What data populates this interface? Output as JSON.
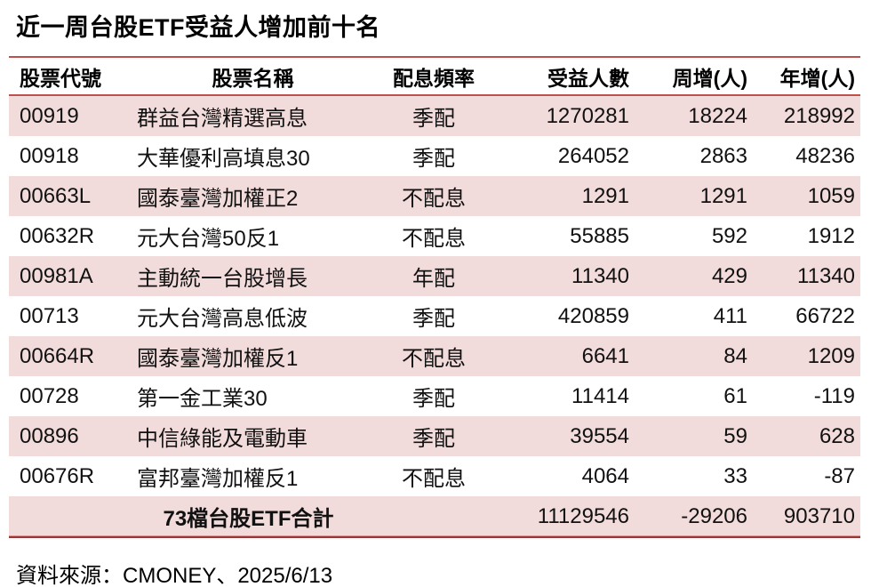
{
  "title": "近一周台股ETF受益人增加前十名",
  "chart_data": {
    "type": "table",
    "title": "近一周台股ETF受益人增加前十名",
    "columns": [
      "股票代號",
      "股票名稱",
      "配息頻率",
      "受益人數",
      "周增(人)",
      "年增(人)"
    ],
    "rows": [
      {
        "code": "00919",
        "name": "群益台灣精選高息",
        "freq": "季配",
        "holders": "1270281",
        "week_change": "18224",
        "year_change": "218992"
      },
      {
        "code": "00918",
        "name": "大華優利高填息30",
        "freq": "季配",
        "holders": "264052",
        "week_change": "2863",
        "year_change": "48236"
      },
      {
        "code": "00663L",
        "name": "國泰臺灣加權正2",
        "freq": "不配息",
        "holders": "1291",
        "week_change": "1291",
        "year_change": "1059"
      },
      {
        "code": "00632R",
        "name": "元大台灣50反1",
        "freq": "不配息",
        "holders": "55885",
        "week_change": "592",
        "year_change": "1912"
      },
      {
        "code": "00981A",
        "name": "主動統一台股增長",
        "freq": "年配",
        "holders": "11340",
        "week_change": "429",
        "year_change": "11340"
      },
      {
        "code": "00713",
        "name": "元大台灣高息低波",
        "freq": "季配",
        "holders": "420859",
        "week_change": "411",
        "year_change": "66722"
      },
      {
        "code": "00664R",
        "name": "國泰臺灣加權反1",
        "freq": "不配息",
        "holders": "6641",
        "week_change": "84",
        "year_change": "1209"
      },
      {
        "code": "00728",
        "name": "第一金工業30",
        "freq": "季配",
        "holders": "11414",
        "week_change": "61",
        "year_change": "-119"
      },
      {
        "code": "00896",
        "name": "中信綠能及電動車",
        "freq": "季配",
        "holders": "39554",
        "week_change": "59",
        "year_change": "628"
      },
      {
        "code": "00676R",
        "name": "富邦臺灣加權反1",
        "freq": "不配息",
        "holders": "4064",
        "week_change": "33",
        "year_change": "-87"
      }
    ],
    "total": {
      "label": "73檔台股ETF合計",
      "holders": "11129546",
      "week_change": "-29206",
      "year_change": "903710"
    },
    "source": "資料來源：CMONEY、2025/6/13"
  },
  "colors": {
    "band_pink": "#f2dcdb",
    "line_red": "#c0504d",
    "line_dark_red": "#953735",
    "text": "#000000",
    "background": "#ffffff"
  }
}
